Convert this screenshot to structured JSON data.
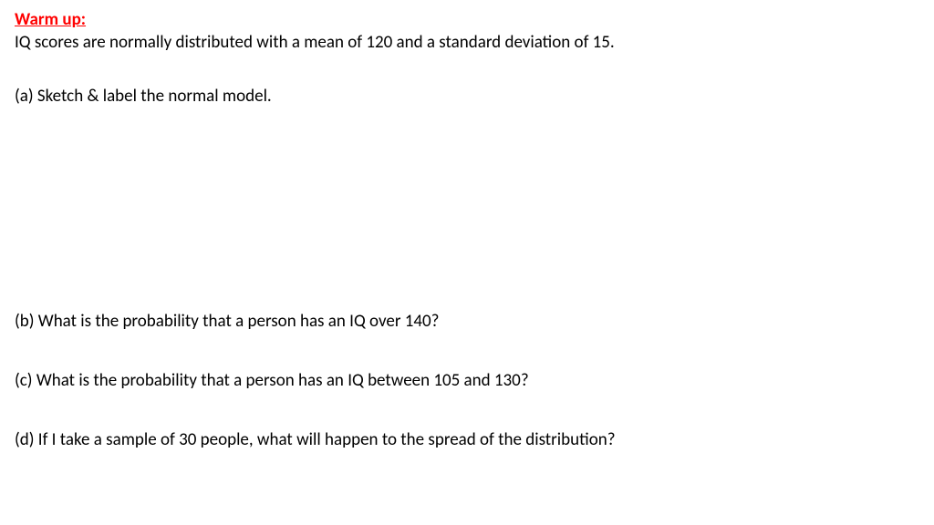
{
  "heading": "Warm up:",
  "intro": "IQ scores are normally distributed with a mean of 120 and a standard deviation of 15.",
  "questions": {
    "a": "(a) Sketch & label the normal model.",
    "b": "(b) What is the probability that a person has an IQ over 140?",
    "c": "(c) What is the probability that a person has an IQ between 105 and 130?",
    "d": "(d) If I take a sample of 30 people, what will happen to the spread of the distribution?"
  },
  "colors": {
    "heading_color": "#ff0000",
    "body_color": "#000000",
    "background": "#ffffff"
  },
  "typography": {
    "font_family": "Calibri",
    "font_size_pt": 14,
    "heading_weight": "bold",
    "heading_underline": true
  }
}
